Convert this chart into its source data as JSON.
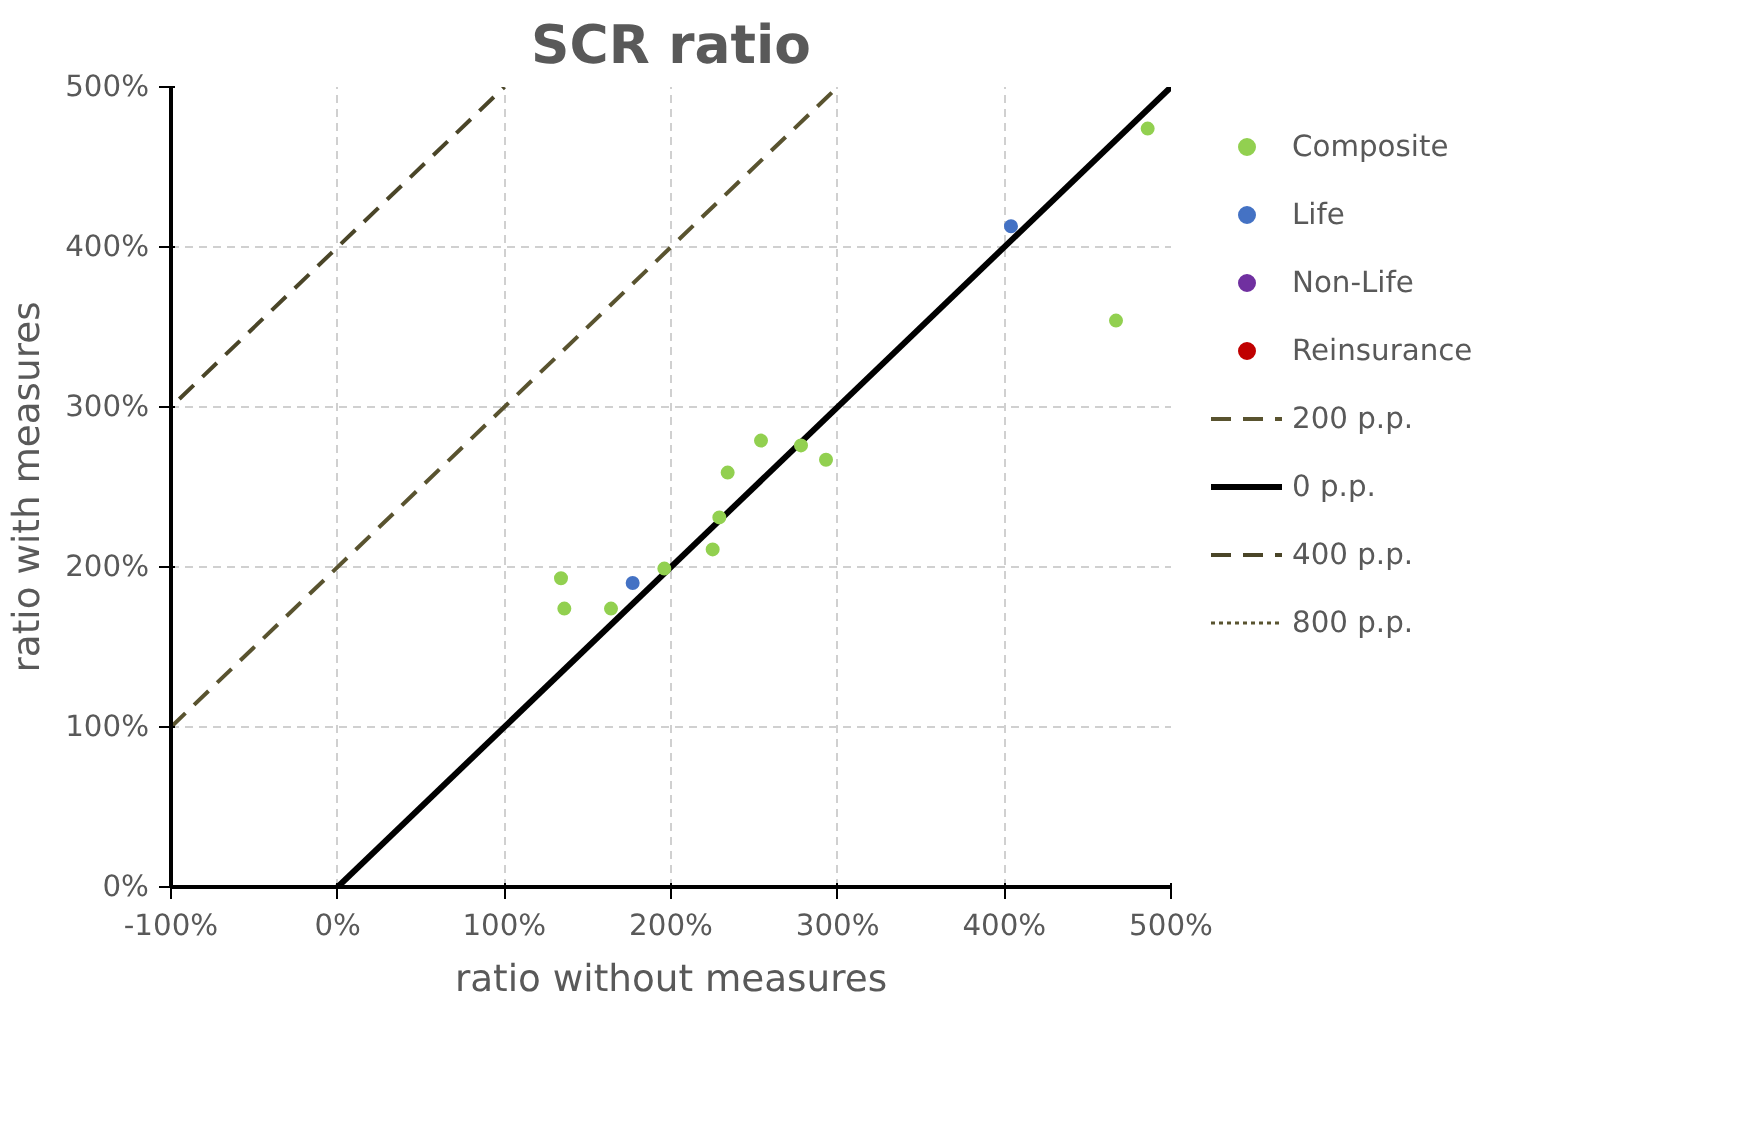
{
  "chart_data": {
    "type": "scatter",
    "title": "SCR ratio",
    "xlabel": "ratio without measures",
    "ylabel": "ratio with measures",
    "xlim": [
      -100,
      500
    ],
    "ylim": [
      0,
      500
    ],
    "xticks": [
      {
        "value": -100,
        "label": "-100%"
      },
      {
        "value": 0,
        "label": "0%"
      },
      {
        "value": 100,
        "label": "100%"
      },
      {
        "value": 200,
        "label": "200%"
      },
      {
        "value": 300,
        "label": "300%"
      },
      {
        "value": 400,
        "label": "400%"
      },
      {
        "value": 500,
        "label": "500%"
      }
    ],
    "yticks": [
      {
        "value": 0,
        "label": "0%"
      },
      {
        "value": 100,
        "label": "100%"
      },
      {
        "value": 200,
        "label": "200%"
      },
      {
        "value": 300,
        "label": "300%"
      },
      {
        "value": 400,
        "label": "400%"
      },
      {
        "value": 500,
        "label": "500%"
      }
    ],
    "grid": true,
    "legend": "right",
    "series": [
      {
        "name": "Composite",
        "marker": "circle",
        "color": "#92d050",
        "x": [
          134,
          136,
          164,
          196,
          225,
          229,
          234,
          254,
          278,
          293,
          486,
          467
        ],
        "values": [
          193,
          174,
          174,
          199,
          211,
          231,
          259,
          279,
          276,
          267,
          474,
          354
        ]
      },
      {
        "name": "Life",
        "marker": "circle",
        "color": "#4472c4",
        "x": [
          177,
          404
        ],
        "values": [
          190,
          413
        ]
      },
      {
        "name": "Non-Life",
        "marker": "circle",
        "color": "#7030a0"
      },
      {
        "name": "Reinsurance",
        "marker": "circle",
        "color": "#c00000"
      },
      {
        "name": "200 p.p.",
        "type": "line",
        "line_style": "dashed",
        "color": "#59532f",
        "x": [
          -100,
          300
        ],
        "values": [
          100,
          500
        ]
      },
      {
        "name": "0 p.p.",
        "type": "line",
        "line_style": "solid",
        "color": "#000000",
        "x": [
          0,
          500
        ],
        "values": [
          0,
          500
        ]
      },
      {
        "name": "400 p.p.",
        "type": "line",
        "line_style": "dashed",
        "color": "#4a4528",
        "x": [
          -95,
          100
        ],
        "values": [
          305,
          500
        ]
      },
      {
        "name": "800 p.p.",
        "type": "line",
        "line_style": "dotted",
        "color": "#59532f"
      }
    ]
  }
}
